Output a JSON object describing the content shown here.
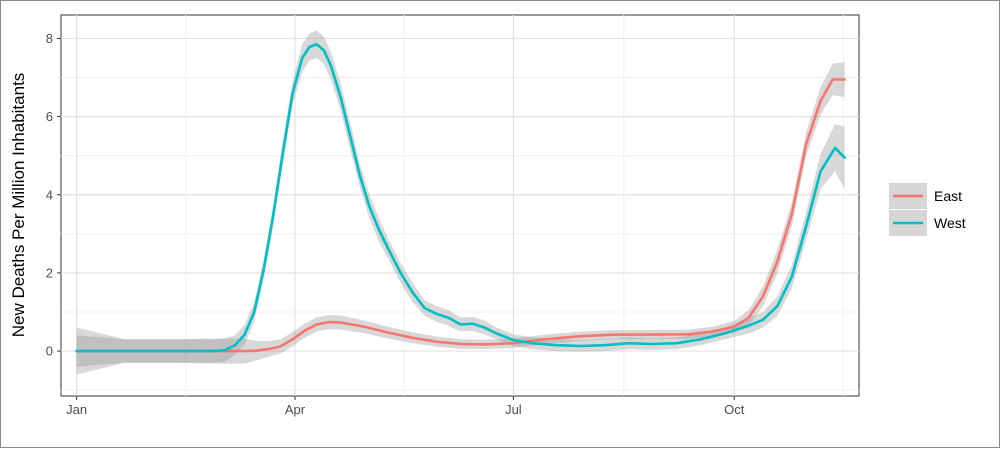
{
  "chart_data": {
    "type": "line",
    "title": "",
    "xlabel": "",
    "ylabel": "New Deaths Per Million Inhabitants",
    "x_tick_labels": [
      "Jan",
      "Apr",
      "Jul",
      "Oct"
    ],
    "x_ticks": [
      0,
      91,
      182,
      274
    ],
    "y_ticks": [
      0,
      2,
      4,
      6,
      8
    ],
    "xlim": [
      -6.5,
      326
    ],
    "ylim": [
      -1.15,
      8.6
    ],
    "grid": true,
    "legend_position": "right",
    "series": [
      {
        "name": "East",
        "color": "#F8766D",
        "x": [
          0,
          20,
          40,
          60,
          70,
          75,
          80,
          85,
          90,
          95,
          100,
          105,
          110,
          120,
          130,
          140,
          150,
          160,
          170,
          182,
          195,
          210,
          225,
          240,
          255,
          265,
          274,
          280,
          286,
          292,
          298,
          304,
          310,
          315,
          320
        ],
        "y": [
          0,
          0,
          0,
          0,
          0,
          0.01,
          0.05,
          0.12,
          0.3,
          0.52,
          0.68,
          0.74,
          0.73,
          0.62,
          0.47,
          0.34,
          0.24,
          0.18,
          0.17,
          0.2,
          0.3,
          0.38,
          0.42,
          0.42,
          0.43,
          0.5,
          0.62,
          0.85,
          1.4,
          2.3,
          3.5,
          5.3,
          6.4,
          6.95,
          6.95
        ],
        "band_halfwidth": [
          0.6,
          0.3,
          0.3,
          0.32,
          0.32,
          0.25,
          0.2,
          0.18,
          0.18,
          0.18,
          0.18,
          0.18,
          0.18,
          0.16,
          0.15,
          0.14,
          0.13,
          0.12,
          0.12,
          0.12,
          0.12,
          0.12,
          0.12,
          0.12,
          0.12,
          0.12,
          0.15,
          0.2,
          0.25,
          0.3,
          0.3,
          0.3,
          0.35,
          0.4,
          0.45
        ]
      },
      {
        "name": "West",
        "color": "#00BFC4",
        "x": [
          0,
          20,
          40,
          58,
          62,
          66,
          70,
          74,
          78,
          82,
          86,
          90,
          94,
          97,
          100,
          103,
          106,
          110,
          114,
          118,
          122,
          126,
          130,
          135,
          140,
          145,
          150,
          155,
          160,
          165,
          170,
          175,
          182,
          190,
          200,
          210,
          220,
          230,
          240,
          250,
          260,
          270,
          280,
          286,
          292,
          298,
          304,
          310,
          316,
          320
        ],
        "y": [
          0,
          0,
          0,
          0,
          0.03,
          0.15,
          0.42,
          1.0,
          2.1,
          3.5,
          5.1,
          6.6,
          7.5,
          7.78,
          7.85,
          7.7,
          7.3,
          6.5,
          5.5,
          4.5,
          3.7,
          3.1,
          2.6,
          2.0,
          1.5,
          1.1,
          0.95,
          0.85,
          0.68,
          0.7,
          0.6,
          0.45,
          0.28,
          0.2,
          0.15,
          0.13,
          0.15,
          0.2,
          0.18,
          0.2,
          0.3,
          0.45,
          0.65,
          0.8,
          1.15,
          1.9,
          3.2,
          4.6,
          5.2,
          4.95
        ],
        "band_halfwidth": [
          0.4,
          0.3,
          0.3,
          0.3,
          0.3,
          0.25,
          0.25,
          0.25,
          0.25,
          0.25,
          0.3,
          0.3,
          0.35,
          0.35,
          0.35,
          0.35,
          0.35,
          0.35,
          0.35,
          0.3,
          0.3,
          0.3,
          0.25,
          0.25,
          0.25,
          0.2,
          0.2,
          0.2,
          0.18,
          0.18,
          0.18,
          0.15,
          0.15,
          0.15,
          0.15,
          0.15,
          0.15,
          0.15,
          0.15,
          0.15,
          0.15,
          0.15,
          0.2,
          0.2,
          0.25,
          0.3,
          0.35,
          0.45,
          0.6,
          0.8
        ]
      }
    ]
  }
}
